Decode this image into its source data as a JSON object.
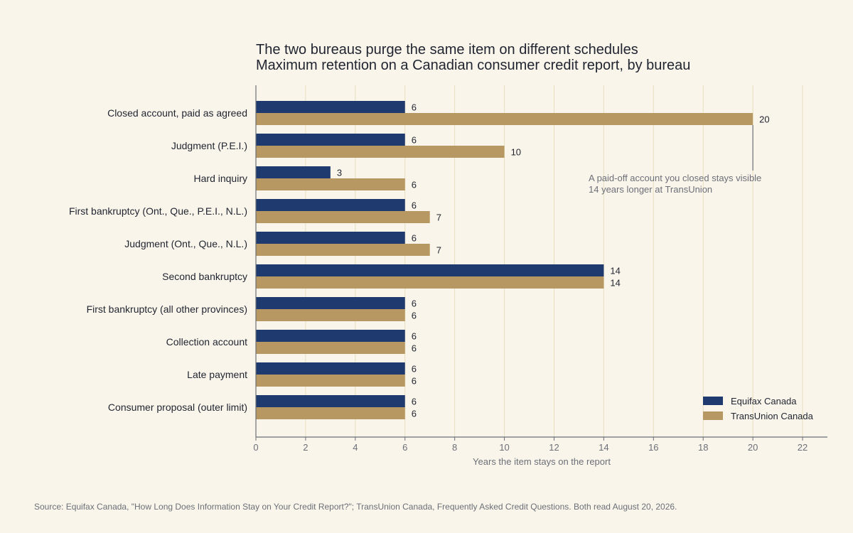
{
  "chart_data": {
    "type": "bar",
    "orientation": "horizontal",
    "title": "The two bureaus purge the same item on different schedules",
    "subtitle": "Maximum retention on a Canadian consumer credit report, by bureau",
    "xlabel": "Years the item stays on the report",
    "ylabel": "",
    "xlim": [
      0,
      23
    ],
    "xticks": [
      0,
      2,
      4,
      6,
      8,
      10,
      12,
      14,
      16,
      18,
      20,
      22
    ],
    "grid": "vertical",
    "legend_position": "bottom-right",
    "categories": [
      "Closed account, paid as agreed",
      "Judgment (P.E.I.)",
      "Hard inquiry",
      "First bankruptcy (Ont., Que., P.E.I., N.L.)",
      "Judgment (Ont., Que., N.L.)",
      "Second bankruptcy",
      "First bankruptcy (all other provinces)",
      "Collection account",
      "Late payment",
      "Consumer proposal (outer limit)"
    ],
    "series": [
      {
        "name": "Equifax Canada",
        "color": "#1f3a6e",
        "values": [
          6,
          6,
          3,
          6,
          6,
          14,
          6,
          6,
          6,
          6
        ]
      },
      {
        "name": "TransUnion Canada",
        "color": "#b89862",
        "values": [
          20,
          10,
          6,
          7,
          7,
          14,
          6,
          6,
          6,
          6
        ]
      }
    ],
    "annotation": {
      "lines": [
        "A paid-off account you closed stays visible",
        "14 years longer at TransUnion"
      ],
      "category_index": 0,
      "series_index": 1,
      "x": 20
    }
  },
  "source": "Source: Equifax Canada, \"How Long Does Information Stay on Your Credit Report?\"; TransUnion Canada, Frequently Asked Credit Questions. Both read August 20, 2026.",
  "colors": {
    "background": "#faf5ea",
    "grid": "#e6dfbf",
    "axis": "#6b6f78"
  }
}
